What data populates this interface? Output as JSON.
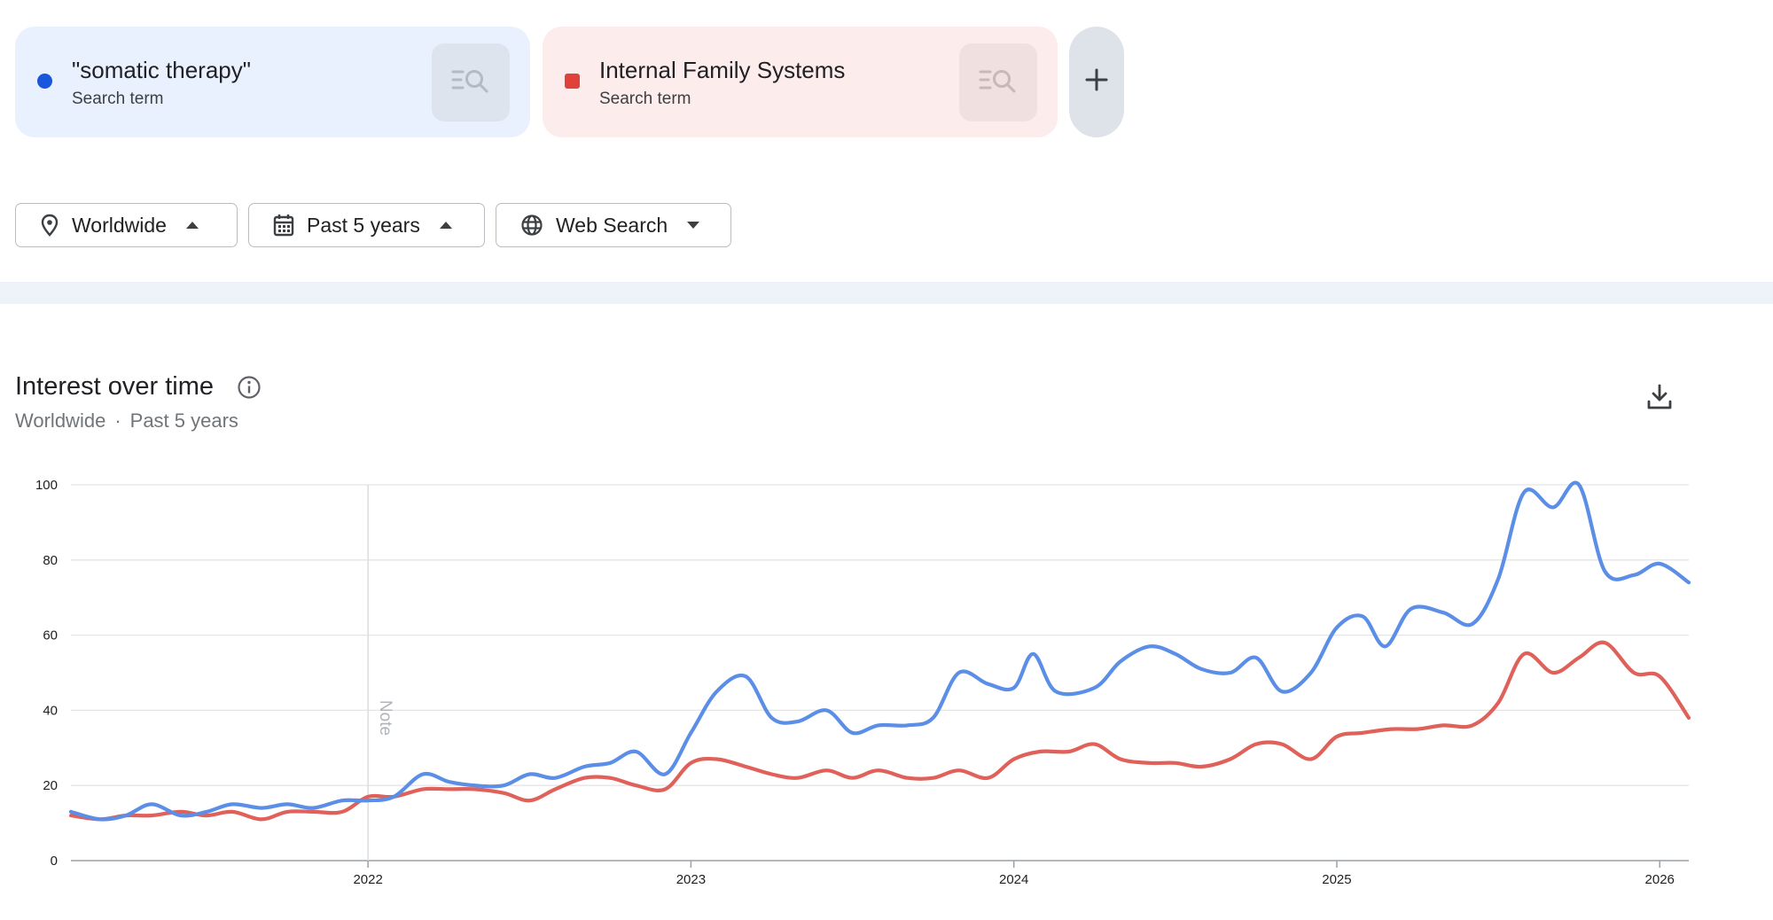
{
  "search_terms": [
    {
      "name": "\"somatic therapy\"",
      "type": "Search term",
      "color": "#1a56db",
      "icon": "explore-search-icon"
    },
    {
      "name": "Internal Family Systems",
      "type": "Search term",
      "color": "#e0413a",
      "icon": "explore-search-icon"
    }
  ],
  "add_term_icon": "plus-icon",
  "filters": {
    "location": {
      "label": "Worldwide",
      "icon": "location-pin-icon"
    },
    "time": {
      "label": "Past 5 years",
      "icon": "calendar-icon"
    },
    "property": {
      "label": "Web Search",
      "icon": "globe-icon"
    }
  },
  "chart_header": {
    "title": "Interest over time",
    "subtitle_location": "Worldwide",
    "subtitle_separator": "·",
    "subtitle_time": "Past 5 years"
  },
  "chart_data": {
    "type": "line",
    "title": "Interest over time",
    "xlabel": "",
    "ylabel": "",
    "ylim": [
      0,
      100
    ],
    "yticks": [
      0,
      20,
      40,
      60,
      80,
      100
    ],
    "xlim": [
      2021.08,
      2026.09
    ],
    "xticks": [
      2022,
      2023,
      2024,
      2025,
      2026
    ],
    "grid": true,
    "annotation": {
      "text": "Note",
      "x": 2022.0
    },
    "series": [
      {
        "name": "\"somatic therapy\"",
        "color": "#5b8ee6",
        "x": [
          2021.08,
          2021.17,
          2021.25,
          2021.33,
          2021.42,
          2021.5,
          2021.58,
          2021.67,
          2021.75,
          2021.83,
          2021.92,
          2022.0,
          2022.08,
          2022.17,
          2022.25,
          2022.33,
          2022.42,
          2022.5,
          2022.58,
          2022.67,
          2022.75,
          2022.83,
          2022.92,
          2023.0,
          2023.08,
          2023.17,
          2023.25,
          2023.33,
          2023.42,
          2023.5,
          2023.58,
          2023.67,
          2023.75,
          2023.83,
          2023.92,
          2024.0,
          2024.06,
          2024.13,
          2024.25,
          2024.33,
          2024.42,
          2024.5,
          2024.58,
          2024.67,
          2024.75,
          2024.83,
          2024.92,
          2025.0,
          2025.08,
          2025.15,
          2025.23,
          2025.33,
          2025.42,
          2025.5,
          2025.58,
          2025.67,
          2025.75,
          2025.83,
          2025.92,
          2026.0,
          2026.09
        ],
        "values": [
          13,
          11,
          12,
          15,
          12,
          13,
          15,
          14,
          15,
          14,
          16,
          16,
          17,
          23,
          21,
          20,
          20,
          23,
          22,
          25,
          26,
          29,
          23,
          34,
          45,
          49,
          38,
          37,
          40,
          34,
          36,
          36,
          38,
          50,
          47,
          46,
          55,
          45,
          46,
          53,
          57,
          55,
          51,
          50,
          54,
          45,
          50,
          62,
          65,
          57,
          67,
          66,
          63,
          75,
          98,
          94,
          100,
          77,
          76,
          79,
          74
        ]
      },
      {
        "name": "Internal Family Systems",
        "color": "#e0605a",
        "x": [
          2021.08,
          2021.17,
          2021.25,
          2021.33,
          2021.42,
          2021.5,
          2021.58,
          2021.67,
          2021.75,
          2021.83,
          2021.92,
          2022.0,
          2022.08,
          2022.17,
          2022.25,
          2022.33,
          2022.42,
          2022.5,
          2022.58,
          2022.67,
          2022.75,
          2022.83,
          2022.92,
          2023.0,
          2023.08,
          2023.17,
          2023.25,
          2023.33,
          2023.42,
          2023.5,
          2023.58,
          2023.67,
          2023.75,
          2023.83,
          2023.92,
          2024.0,
          2024.08,
          2024.17,
          2024.25,
          2024.33,
          2024.42,
          2024.5,
          2024.58,
          2024.67,
          2024.75,
          2024.83,
          2024.92,
          2025.0,
          2025.08,
          2025.17,
          2025.25,
          2025.33,
          2025.42,
          2025.5,
          2025.58,
          2025.67,
          2025.75,
          2025.83,
          2025.92,
          2026.0,
          2026.09
        ],
        "values": [
          12,
          11,
          12,
          12,
          13,
          12,
          13,
          11,
          13,
          13,
          13,
          17,
          17,
          19,
          19,
          19,
          18,
          16,
          19,
          22,
          22,
          20,
          19,
          26,
          27,
          25,
          23,
          22,
          24,
          22,
          24,
          22,
          22,
          24,
          22,
          27,
          29,
          29,
          31,
          27,
          26,
          26,
          25,
          27,
          31,
          31,
          27,
          33,
          34,
          35,
          35,
          36,
          36,
          42,
          55,
          50,
          54,
          58,
          50,
          49,
          38
        ]
      }
    ]
  }
}
